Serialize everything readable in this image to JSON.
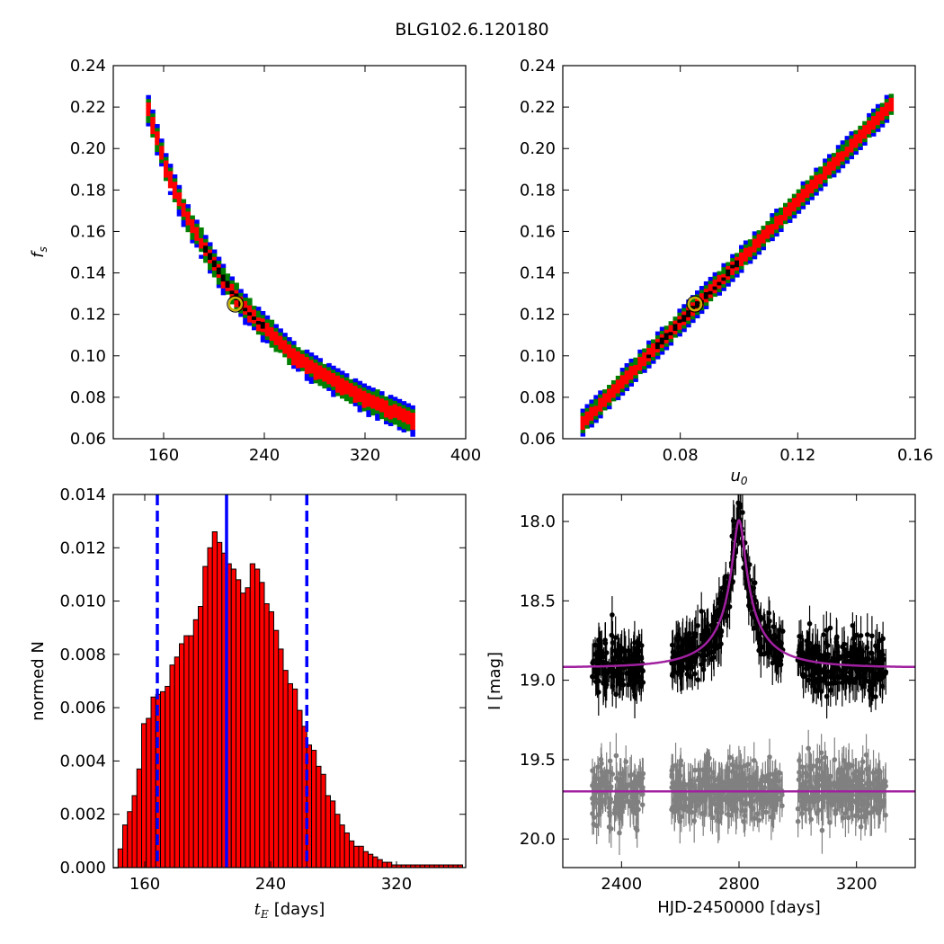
{
  "figure": {
    "title": "BLG102.6.120180"
  },
  "chart_data": [
    {
      "id": "panel-fs-vs-tE",
      "type": "scatter",
      "description_kind": "2D posterior density (MCMC chain), colored by confidence level",
      "xlabel": "",
      "ylabel": "f_s",
      "xlim": [
        120,
        400
      ],
      "ylim": [
        0.06,
        0.24
      ],
      "xticks": [
        160,
        240,
        320,
        400
      ],
      "yticks": [
        0.06,
        0.08,
        0.1,
        0.12,
        0.14,
        0.16,
        0.18,
        0.2,
        0.22,
        0.24
      ],
      "ytick_labels": [
        "0.06",
        "0.08",
        "0.10",
        "0.12",
        "0.14",
        "0.16",
        "0.18",
        "0.20",
        "0.22",
        "0.24"
      ],
      "levels": [
        {
          "name": "outer",
          "color": "#0000ff",
          "width": 0.007
        },
        {
          "name": "2-sigma",
          "color": "#008000",
          "width": 0.0055
        },
        {
          "name": "1-sigma",
          "color": "#ff0000",
          "width": 0.0035
        },
        {
          "name": "core",
          "color": "#000000",
          "width": 0.0012
        }
      ],
      "ridge_x": [
        146,
        160,
        175,
        190,
        205,
        220,
        240,
        260,
        280,
        300,
        320,
        340,
        357
      ],
      "ridge_y": [
        0.218,
        0.19,
        0.168,
        0.152,
        0.137,
        0.124,
        0.112,
        0.1,
        0.092,
        0.085,
        0.078,
        0.073,
        0.068
      ],
      "core_range": [
        190,
        240
      ],
      "best_fit": {
        "x": 217,
        "y": 0.125,
        "color": "#c8b400"
      }
    },
    {
      "id": "panel-fs-vs-u0",
      "type": "scatter",
      "description_kind": "2D posterior density (MCMC chain), colored by confidence level",
      "xlabel": "u_0",
      "ylabel": "",
      "xlim": [
        0.04,
        0.16
      ],
      "ylim": [
        0.06,
        0.24
      ],
      "xticks": [
        0.08,
        0.12,
        0.16
      ],
      "xtick_labels": [
        "0.08",
        "0.12",
        "0.16"
      ],
      "yticks": [
        0.06,
        0.08,
        0.1,
        0.12,
        0.14,
        0.16,
        0.18,
        0.2,
        0.22,
        0.24
      ],
      "ytick_labels": [
        "0.06",
        "0.08",
        "0.10",
        "0.12",
        "0.14",
        "0.16",
        "0.18",
        "0.20",
        "0.22",
        "0.24"
      ],
      "line": {
        "x0": 0.046,
        "y0": 0.067,
        "x1": 0.152,
        "y1": 0.222
      },
      "core_range": [
        0.068,
        0.1
      ],
      "best_fit": {
        "x": 0.085,
        "y": 0.125,
        "color": "#c8b400"
      }
    },
    {
      "id": "panel-tE-histogram",
      "type": "bar",
      "xlabel_main": "t",
      "xlabel_sub": "E",
      "xlabel_tail": "[days]",
      "ylabel": "normed N",
      "xlim": [
        140,
        364
      ],
      "ylim": [
        0.0,
        0.014
      ],
      "xticks": [
        160,
        240,
        320
      ],
      "yticks": [
        0.0,
        0.002,
        0.004,
        0.006,
        0.008,
        0.01,
        0.012,
        0.014
      ],
      "ytick_labels": [
        "0.000",
        "0.002",
        "0.004",
        "0.006",
        "0.008",
        "0.010",
        "0.012",
        "0.014"
      ],
      "bar_color": "#ff0000",
      "bin_start": 140,
      "bin_width": 3.0,
      "values": [
        0.0,
        0.0007,
        0.0016,
        0.0021,
        0.0027,
        0.0037,
        0.0054,
        0.0056,
        0.0064,
        0.0065,
        0.0066,
        0.0068,
        0.0076,
        0.0079,
        0.0084,
        0.0087,
        0.0087,
        0.0093,
        0.0098,
        0.0113,
        0.012,
        0.0126,
        0.0122,
        0.0118,
        0.0114,
        0.0112,
        0.0108,
        0.0103,
        0.0105,
        0.0114,
        0.0112,
        0.0107,
        0.0099,
        0.0096,
        0.0089,
        0.0082,
        0.0074,
        0.0069,
        0.0067,
        0.0059,
        0.0053,
        0.0046,
        0.0044,
        0.0038,
        0.0035,
        0.0027,
        0.0025,
        0.002,
        0.0016,
        0.0013,
        0.001,
        0.0008,
        0.0008,
        0.0006,
        0.0005,
        0.0004,
        0.0003,
        0.0002,
        0.0002,
        0.0001,
        0.0001,
        0.0001,
        0.0001,
        0.0001,
        0.0001,
        0.0001,
        0.0001,
        0.0001,
        0.0001,
        0.0001,
        0.0001,
        0.0001,
        0.0001,
        0.0001,
        0.0001
      ],
      "vlines": [
        {
          "x": 212,
          "style": "solid",
          "color": "#0000ff"
        },
        {
          "x": 168,
          "style": "dashed",
          "color": "#0000ff"
        },
        {
          "x": 263,
          "style": "dashed",
          "color": "#0000ff"
        }
      ]
    },
    {
      "id": "panel-light-curve",
      "type": "scatter",
      "xlabel": "HJD-2450000 [days]",
      "ylabel": "I [mag]",
      "xlim": [
        2200,
        3400
      ],
      "ylim": [
        20.18,
        17.83
      ],
      "y_inverted": true,
      "xticks": [
        2400,
        2800,
        3200
      ],
      "yticks": [
        18.0,
        18.5,
        19.0,
        19.5,
        20.0
      ],
      "ytick_labels": [
        "18.0",
        "18.5",
        "19.0",
        "19.5",
        "20.0"
      ],
      "model": {
        "t0": 2800,
        "tE": 212,
        "u0": 0.085,
        "fs": 0.125,
        "baseline": 18.92,
        "color": "#a020a0"
      },
      "residual_baseline": 19.7,
      "series": [
        {
          "name": "data",
          "color": "#000000",
          "segments": [
            [
              2300,
              2475
            ],
            [
              2570,
              2700
            ],
            [
              2700,
              2950
            ],
            [
              3000,
              3300
            ]
          ]
        },
        {
          "name": "residuals",
          "color": "#808080",
          "segments": [
            [
              2300,
              2475
            ],
            [
              2570,
              2700
            ],
            [
              2700,
              2950
            ],
            [
              3000,
              3300
            ]
          ]
        }
      ]
    }
  ]
}
